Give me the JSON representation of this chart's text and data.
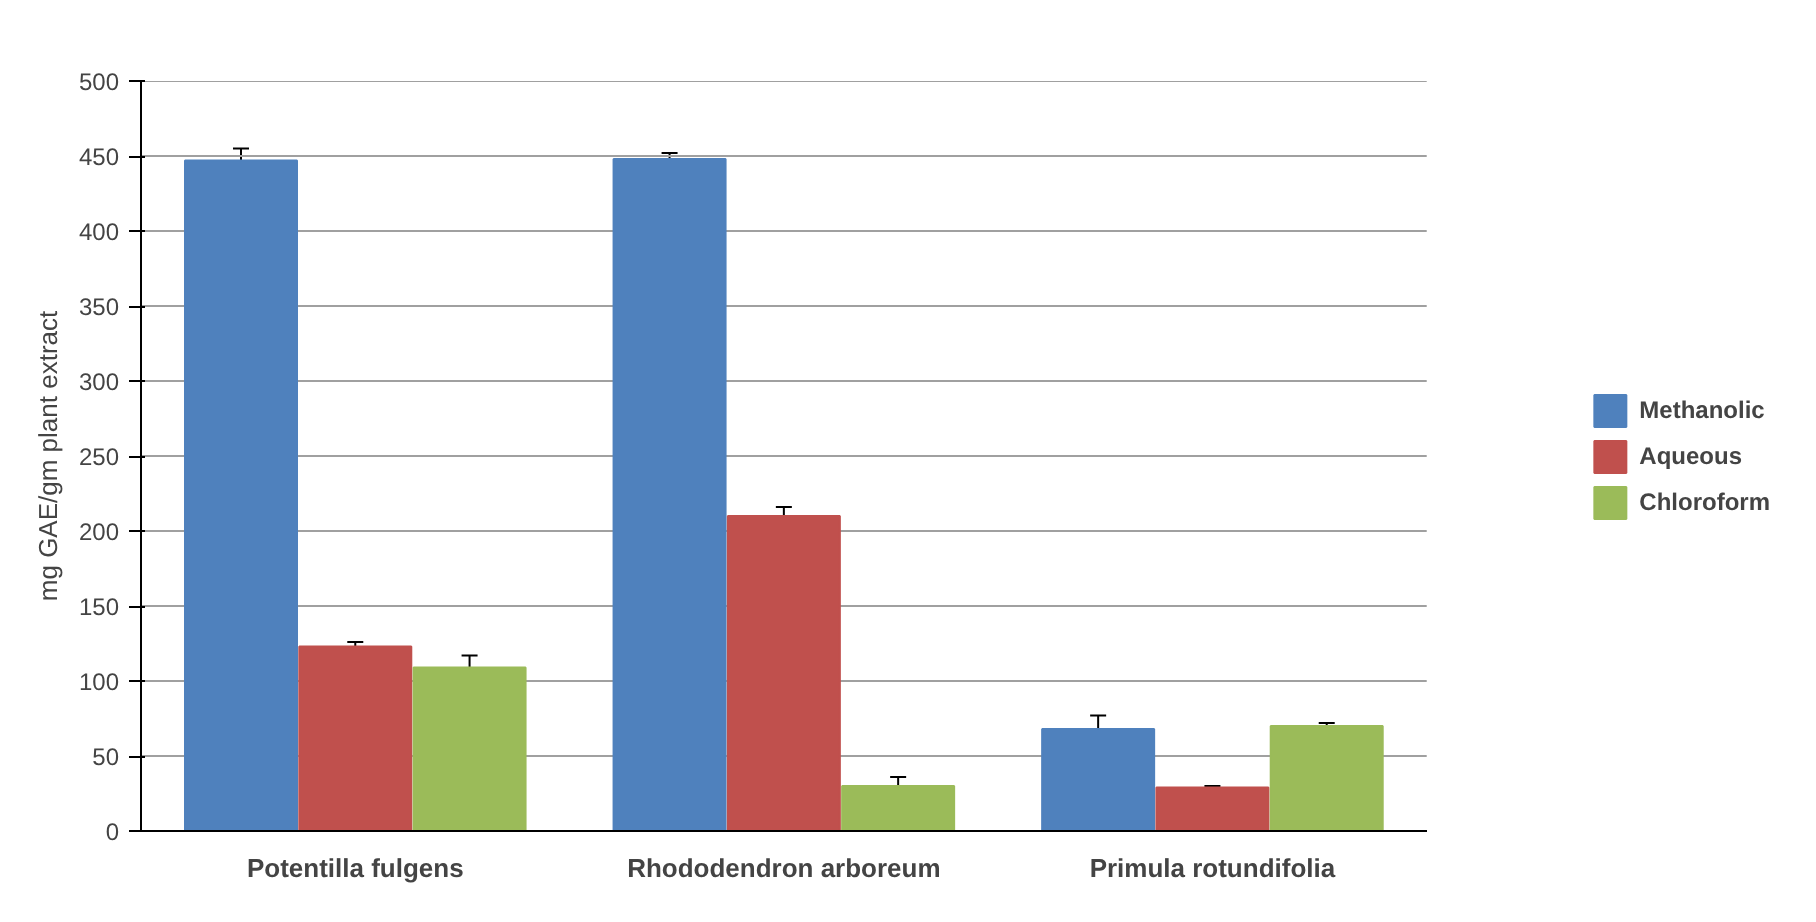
{
  "chart_data": {
    "type": "bar",
    "ylabel": "mg GAE/gm plant extract",
    "categories": [
      "Potentilla fulgens",
      "Rhododendron arboreum",
      "Primula rotundifolia"
    ],
    "series": [
      {
        "name": "Methanolic",
        "color": "#4f81bd",
        "values": [
          447,
          448,
          68
        ],
        "errors": [
          8,
          4,
          9
        ]
      },
      {
        "name": "Aqueous",
        "color": "#c0504d",
        "values": [
          123,
          210,
          29
        ],
        "errors": [
          3,
          6,
          1
        ]
      },
      {
        "name": "Chloroform",
        "color": "#9bbb59",
        "values": [
          109,
          30,
          70
        ],
        "errors": [
          8,
          6,
          2
        ]
      }
    ],
    "ylim": [
      0,
      500
    ],
    "yticks": [
      0,
      50,
      100,
      150,
      200,
      250,
      300,
      350,
      400,
      450,
      500
    ],
    "grid": "y",
    "legend": "right"
  }
}
